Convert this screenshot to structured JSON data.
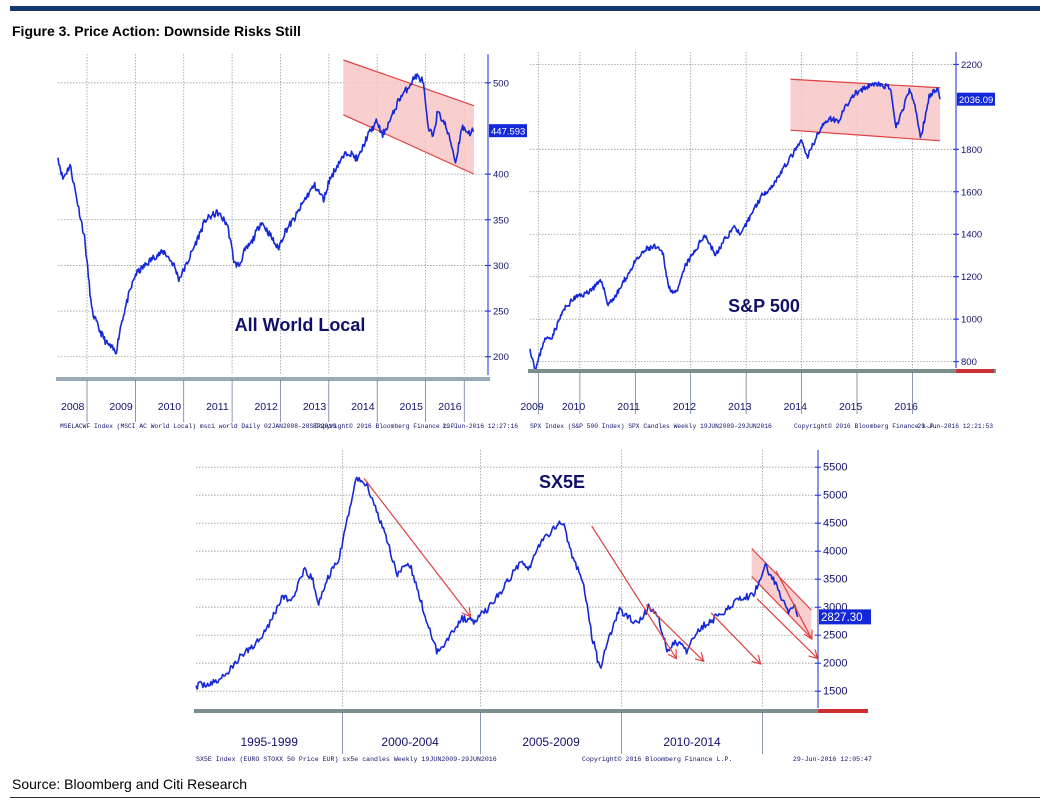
{
  "figure_title": "Figure 3. Price Action: Downside Risks Still",
  "source": "Source: Bloomberg and Citi Research",
  "colors": {
    "series": "#1428d8",
    "band_fill": "#f7c6c6",
    "band_line": "#e04040",
    "grid": "#9a9a9a",
    "axis": "#1428d8",
    "value_box": "#1428d8"
  },
  "chart_data": [
    {
      "id": "world",
      "type": "line",
      "title": "All World Local",
      "ylim": [
        180,
        525
      ],
      "yticks": [
        200,
        250,
        300,
        350,
        400,
        500
      ],
      "current_value": 447.593,
      "current_label": "447.593",
      "xlim": [
        2007.9,
        2016.75
      ],
      "year_ticks": [
        2008.5,
        2009.5,
        2010.5,
        2011.5,
        2012.5,
        2013.5,
        2014.5,
        2015.5,
        2016.3
      ],
      "x_labels": [
        "2008",
        "2009",
        "2010",
        "2011",
        "2012",
        "2013",
        "2014",
        "2015",
        "2016"
      ],
      "series": {
        "name": "MSCI AC World Local",
        "x": [
          2007.9,
          2008.0,
          2008.15,
          2008.3,
          2008.45,
          2008.6,
          2008.75,
          2008.9,
          2009.0,
          2009.1,
          2009.2,
          2009.35,
          2009.5,
          2009.7,
          2009.9,
          2010.1,
          2010.3,
          2010.4,
          2010.55,
          2010.75,
          2010.95,
          2011.2,
          2011.4,
          2011.55,
          2011.65,
          2011.75,
          2011.9,
          2012.1,
          2012.3,
          2012.45,
          2012.6,
          2012.8,
          2013.0,
          2013.2,
          2013.4,
          2013.5,
          2013.7,
          2013.9,
          2014.1,
          2014.3,
          2014.5,
          2014.6,
          2014.8,
          2014.95,
          2015.1,
          2015.3,
          2015.45,
          2015.55,
          2015.65,
          2015.75,
          2015.9,
          2016.05,
          2016.12,
          2016.25,
          2016.4,
          2016.5
        ],
        "values": [
          418,
          395,
          410,
          370,
          330,
          250,
          230,
          215,
          210,
          205,
          235,
          265,
          290,
          300,
          310,
          315,
          300,
          285,
          300,
          325,
          350,
          358,
          345,
          302,
          300,
          315,
          325,
          348,
          332,
          318,
          338,
          352,
          372,
          388,
          372,
          392,
          412,
          425,
          416,
          442,
          458,
          442,
          462,
          482,
          492,
          508,
          502,
          450,
          442,
          468,
          455,
          430,
          412,
          452,
          445,
          448
        ]
      },
      "band_upper": {
        "x": [
          2013.8,
          2016.5
        ],
        "y": [
          525,
          475
        ]
      },
      "band_lower": {
        "x": [
          2013.8,
          2016.5
        ],
        "y": [
          465,
          400
        ]
      },
      "footer_left": "MSELACWF Index (MSCI AC World Local) msci world  Daily 02JAN2008-28SEP2016",
      "footer_mid": "Copyright© 2016 Bloomberg Finance L.P.",
      "footer_right": "29-Jun-2016 12:27:16"
    },
    {
      "id": "spx",
      "type": "line",
      "title": "S&P 500",
      "ylim": [
        770,
        2230
      ],
      "yticks": [
        800,
        1000,
        1200,
        1400,
        1600,
        1800,
        2200
      ],
      "current_value": 2036.09,
      "current_label": "2036.09",
      "xlim": [
        2009.1,
        2016.75
      ],
      "year_ticks": [
        2009.25,
        2010.0,
        2011.0,
        2012.0,
        2013.0,
        2014.0,
        2015.0,
        2016.0
      ],
      "x_labels": [
        "2009",
        "2010",
        "2011",
        "2012",
        "2013",
        "2014",
        "2015",
        "2016"
      ],
      "series": {
        "name": "SPX Index",
        "x": [
          2009.1,
          2009.2,
          2009.35,
          2009.5,
          2009.7,
          2009.9,
          2010.1,
          2010.25,
          2010.4,
          2010.5,
          2010.65,
          2010.8,
          2011.0,
          2011.2,
          2011.35,
          2011.5,
          2011.6,
          2011.75,
          2011.9,
          2012.1,
          2012.25,
          2012.45,
          2012.6,
          2012.8,
          2012.9,
          2013.1,
          2013.3,
          2013.45,
          2013.6,
          2013.8,
          2014.0,
          2014.1,
          2014.3,
          2014.5,
          2014.65,
          2014.8,
          2014.95,
          2015.1,
          2015.3,
          2015.45,
          2015.6,
          2015.7,
          2015.8,
          2015.95,
          2016.05,
          2016.15,
          2016.3,
          2016.45,
          2016.5
        ],
        "values": [
          860,
          760,
          900,
          920,
          1040,
          1100,
          1120,
          1150,
          1180,
          1070,
          1110,
          1180,
          1270,
          1330,
          1340,
          1310,
          1150,
          1120,
          1250,
          1330,
          1400,
          1300,
          1370,
          1440,
          1390,
          1500,
          1590,
          1620,
          1680,
          1760,
          1840,
          1760,
          1880,
          1950,
          1930,
          2000,
          2060,
          2080,
          2110,
          2100,
          2090,
          1900,
          1970,
          2080,
          2000,
          1850,
          2050,
          2090,
          2036
        ]
      },
      "band_upper": {
        "x": [
          2013.8,
          2016.5
        ],
        "y": [
          2130,
          2090
        ]
      },
      "band_lower": {
        "x": [
          2013.8,
          2016.5
        ],
        "y": [
          1890,
          1840
        ]
      },
      "footer_left": "SPX Index (S&P 500 Index) SPX Candles  Weekly 19JUN2009-29JUN2016",
      "footer_mid": "Copyright© 2016 Bloomberg Finance L.P.",
      "footer_right": "29-Jun-2016 12:21:53"
    },
    {
      "id": "sx5e",
      "type": "line",
      "title": "SX5E",
      "ylim": [
        1200,
        5700
      ],
      "yticks": [
        1500,
        2000,
        2500,
        3000,
        3500,
        4000,
        4500,
        5000,
        5500
      ],
      "current_value": 2827.3,
      "current_label": "2827.30",
      "xlim": [
        1994.3,
        2017.1
      ],
      "year_ticks": [
        1999.7,
        2004.8,
        2010.0,
        2015.2
      ],
      "period_centers": [
        1997.0,
        2002.2,
        2007.4,
        2012.6
      ],
      "x_labels": [
        "1995-1999",
        "2000-2004",
        "2005-2009",
        "2010-2014"
      ],
      "series": {
        "name": "EURO STOXX 50 Price EUR",
        "x": [
          1994.3,
          1995.0,
          1995.5,
          1996.0,
          1996.5,
          1997.0,
          1997.5,
          1997.8,
          1998.3,
          1998.6,
          1998.8,
          1999.2,
          1999.6,
          1999.9,
          2000.2,
          2000.6,
          2000.9,
          2001.3,
          2001.7,
          2002.2,
          2002.6,
          2002.9,
          2003.2,
          2003.6,
          2004.1,
          2004.6,
          2005.2,
          2005.8,
          2006.3,
          2006.6,
          2007.0,
          2007.4,
          2007.8,
          2008.2,
          2008.6,
          2008.9,
          2009.2,
          2009.5,
          2009.9,
          2010.3,
          2010.6,
          2011.0,
          2011.3,
          2011.7,
          2012.0,
          2012.4,
          2012.8,
          2013.3,
          2013.7,
          2014.3,
          2014.8,
          2015.0,
          2015.3,
          2015.6,
          2015.8,
          2016.0,
          2016.2,
          2016.4,
          2016.5
        ],
        "values": [
          1600,
          1650,
          1850,
          2150,
          2350,
          2700,
          3200,
          3100,
          3650,
          3500,
          3050,
          3550,
          3900,
          4600,
          5300,
          5200,
          4800,
          4300,
          3600,
          3750,
          3100,
          2600,
          2200,
          2450,
          2800,
          2750,
          3050,
          3450,
          3850,
          3700,
          4150,
          4350,
          4550,
          3900,
          3400,
          2500,
          1900,
          2400,
          2950,
          2800,
          2700,
          3000,
          2900,
          2200,
          2400,
          2200,
          2600,
          2750,
          2900,
          3150,
          3200,
          3350,
          3750,
          3500,
          3300,
          3050,
          2900,
          3000,
          2827
        ]
      },
      "band_upper": {
        "x": [
          2014.8,
          2017.0
        ],
        "y": [
          4050,
          2950
        ]
      },
      "band_lower": {
        "x": [
          2014.8,
          2017.0
        ],
        "y": [
          3550,
          2450
        ]
      },
      "arrows": [
        {
          "x": [
            2000.5,
            2004.4
          ],
          "y": [
            5300,
            2850
          ]
        },
        {
          "x": [
            2008.9,
            2012.0
          ],
          "y": [
            4450,
            2100
          ]
        },
        {
          "x": [
            2010.9,
            2013.0
          ],
          "y": [
            3050,
            2050
          ]
        },
        {
          "x": [
            2013.3,
            2015.1
          ],
          "y": [
            2900,
            2000
          ]
        },
        {
          "x": [
            2015.7,
            2017.0
          ],
          "y": [
            3650,
            2450
          ]
        },
        {
          "x": [
            2015.0,
            2017.2
          ],
          "y": [
            3150,
            2100
          ]
        }
      ],
      "footer_left": "SX5E Index (EURO STOXX 50 Price EUR) sx5e candles  Weekly 19JUN2009-29JUN2016",
      "footer_mid": "Copyright© 2016 Bloomberg Finance L.P.",
      "footer_right": "29-Jun-2016 12:05:47"
    }
  ]
}
